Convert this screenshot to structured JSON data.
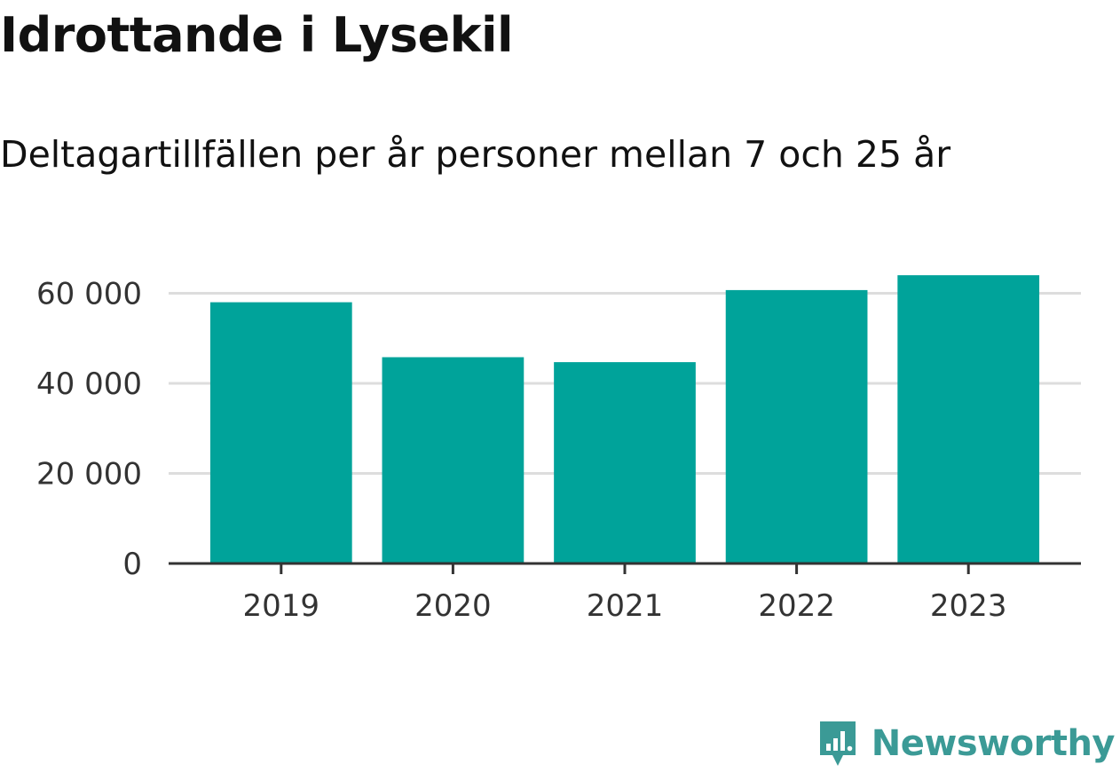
{
  "header": {
    "title": "Idrottande i Lysekil",
    "subtitle": "Deltagartillfällen per år personer mellan 7 och 25 år"
  },
  "colors": {
    "bar": "#00a39a",
    "grid": "#dddddd",
    "axis": "#333333",
    "brand": "#3b9a96"
  },
  "chart_data": {
    "type": "bar",
    "title": "Idrottande i Lysekil",
    "subtitle": "Deltagartillfällen per år personer mellan 7 och 25 år",
    "categories": [
      "2019",
      "2020",
      "2021",
      "2022",
      "2023"
    ],
    "values": [
      58000,
      45800,
      44700,
      60700,
      64000
    ],
    "ylim": [
      0,
      66000
    ],
    "yticks": [
      0,
      20000,
      40000,
      60000
    ],
    "ytick_labels": [
      "0",
      "20 000",
      "40 000",
      "60 000"
    ],
    "grid": true,
    "legend": "none"
  },
  "branding": {
    "name": "Newsworthy",
    "icon": "newsworthy-logo-icon"
  }
}
